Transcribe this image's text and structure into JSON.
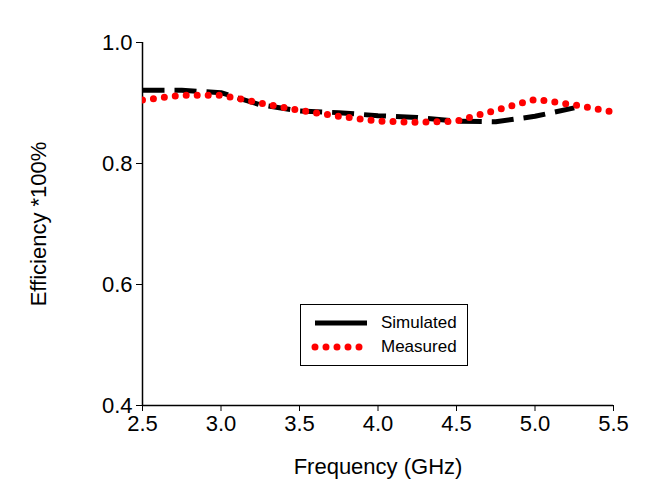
{
  "chart_data": {
    "type": "line",
    "xlabel": "Frequency (GHz)",
    "ylabel": "Efficiency *100%",
    "x": [
      2.5,
      2.75,
      3.0,
      3.25,
      3.5,
      3.75,
      4.0,
      4.25,
      4.5,
      4.75,
      5.0,
      5.25,
      5.5
    ],
    "series": [
      {
        "name": "Simulated",
        "color": "#000000",
        "line_style": "dashed",
        "marker": "none",
        "values": [
          0.921,
          0.921,
          0.917,
          0.897,
          0.887,
          0.884,
          0.879,
          0.876,
          0.87,
          0.869,
          0.878,
          0.892,
          null
        ]
      },
      {
        "name": "Measured",
        "color": "#ff0000",
        "line_style": "dotted",
        "marker": "none",
        "values": [
          0.905,
          0.913,
          0.913,
          0.9,
          0.888,
          0.878,
          0.87,
          0.868,
          0.87,
          0.888,
          0.906,
          0.897,
          0.885
        ]
      }
    ],
    "xlim": [
      2.5,
      5.5
    ],
    "xticks": [
      2.5,
      {
        "value": 3,
        "label": "3.0"
      },
      3.5,
      {
        "value": 4,
        "label": "4.0"
      },
      4.5,
      {
        "value": 5,
        "label": "5.0"
      },
      5.5
    ],
    "ylim": [
      0.4,
      1.0
    ],
    "yticks": [
      0.4,
      0.6,
      0.8,
      {
        "value": 1,
        "label": "1.0"
      }
    ],
    "grid": false,
    "legend": "lower right"
  }
}
